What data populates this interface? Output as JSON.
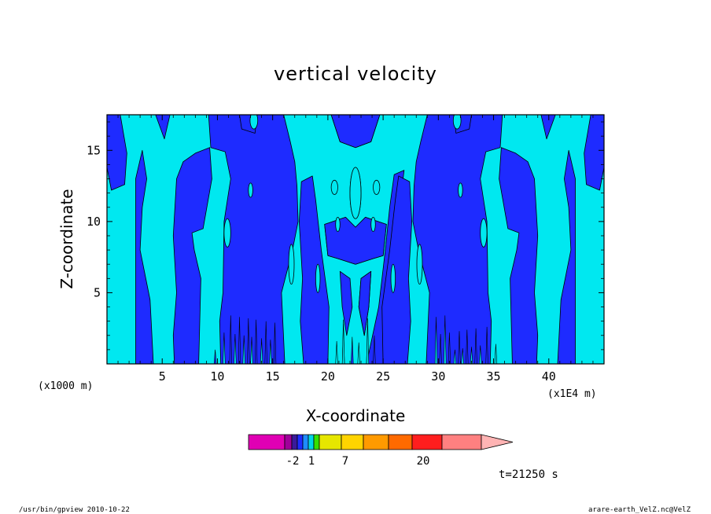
{
  "chart_data": {
    "type": "heatmap",
    "title": "vertical velocity",
    "xlabel": "X-coordinate",
    "ylabel": "Z-coordinate",
    "x_unit_label": "(x1000 m)",
    "x_scale_label": "(x1E4 m)",
    "xlim": [
      0,
      45
    ],
    "ylim": [
      0,
      17.5
    ],
    "x_ticks": [
      "5",
      "10",
      "15",
      "20",
      "25",
      "30",
      "35",
      "40"
    ],
    "y_ticks": [
      "5",
      "10",
      "15"
    ],
    "levels_shown": [
      {
        "name": "negative",
        "color": "#1e2bff"
      },
      {
        "name": "positive",
        "color": "#00e8f0"
      }
    ],
    "colorbar": {
      "colors": [
        "#e000b4",
        "#a0009a",
        "#3a1a9a",
        "#1e2bff",
        "#1e8cff",
        "#00d6e6",
        "#36e000",
        "#e6e600",
        "#ffd400",
        "#ff9a00",
        "#ff6a00",
        "#ff1e1e",
        "#ff8080",
        "#ffb4b4"
      ],
      "labels": [
        "-2",
        "1",
        "7",
        "20"
      ]
    },
    "time_label": "t=21250 s",
    "legend": "none"
  },
  "footer": {
    "left": "/usr/bin/gpview   2010-10-22",
    "right": "arare-earth_VelZ.nc@VelZ"
  }
}
